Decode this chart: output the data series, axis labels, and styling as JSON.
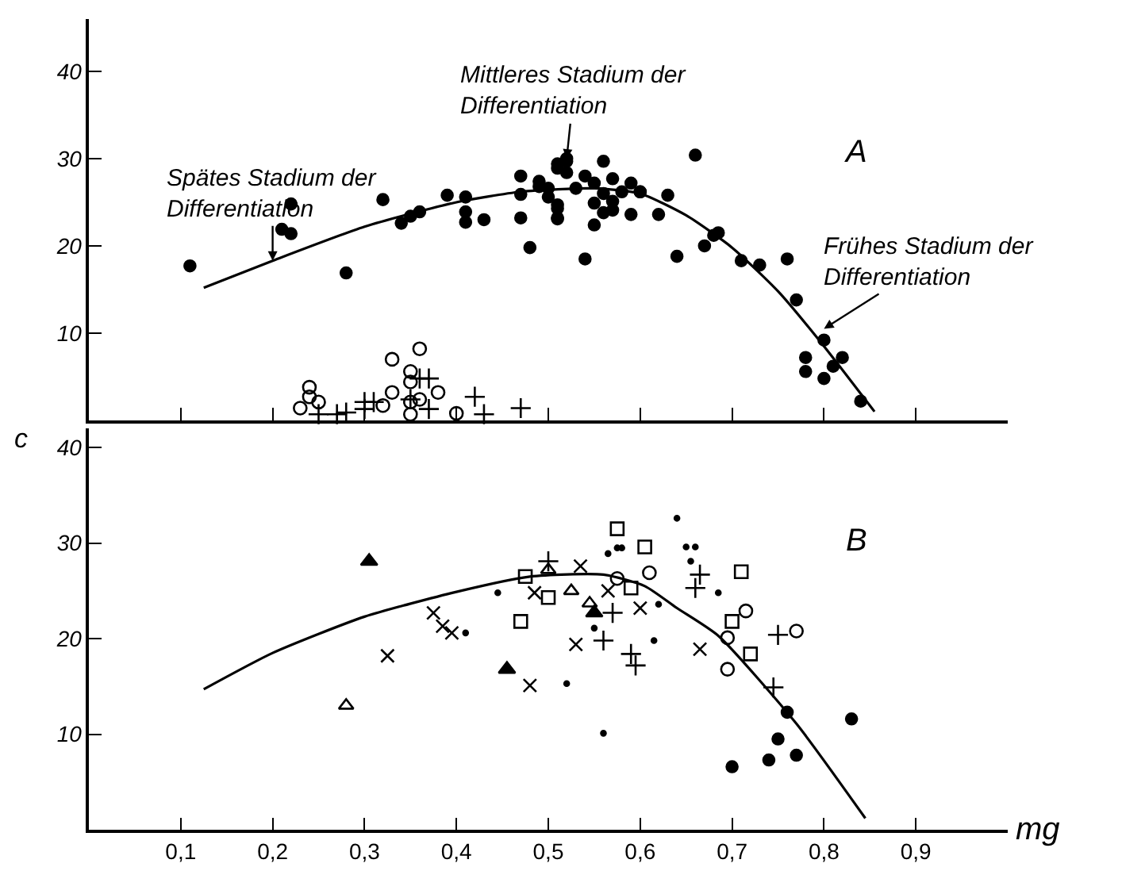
{
  "chart_data": [
    {
      "type": "scatter",
      "ylabel": "c",
      "tick_labels": "y",
      "xlim": [
        0,
        1.0
      ],
      "ylim": [
        0,
        46
      ],
      "xticks": [
        {
          "value": 0.1,
          "label": null
        },
        {
          "value": 0.2,
          "label": null
        },
        {
          "value": 0.3,
          "label": null
        },
        {
          "value": 0.4,
          "label": null
        },
        {
          "value": 0.5,
          "label": null
        },
        {
          "value": 0.6,
          "label": null
        },
        {
          "value": 0.7,
          "label": null
        },
        {
          "value": 0.8,
          "label": null
        },
        {
          "value": 0.9,
          "label": null
        }
      ],
      "yticks": [
        10,
        20,
        30,
        40
      ],
      "annotations": [
        {
          "text": "Spätes Stadium der\nDifferentiation",
          "x": 0.2,
          "y": 18.3
        },
        {
          "text": "Mittleres Stadium der\nDifferentiation",
          "x": 0.52,
          "y": 30.0
        },
        {
          "text": "Frühes Stadium der\nDifferentiation",
          "x": 0.8,
          "y": 10.5
        },
        "A"
      ],
      "series": [
        {
          "type": "scatter",
          "marker": "circle",
          "color": "#000000",
          "x": [
            0.11,
            0.21,
            0.22,
            0.22,
            0.28,
            0.32,
            0.34,
            0.35,
            0.36,
            0.39,
            0.41,
            0.41,
            0.41,
            0.43,
            0.47,
            0.47,
            0.47,
            0.48,
            0.49,
            0.49,
            0.5,
            0.5,
            0.51,
            0.51,
            0.51,
            0.51,
            0.51,
            0.51,
            0.52,
            0.52,
            0.52,
            0.53,
            0.54,
            0.54,
            0.55,
            0.55,
            0.55,
            0.56,
            0.56,
            0.56,
            0.57,
            0.57,
            0.57,
            0.58,
            0.59,
            0.59,
            0.6,
            0.6,
            0.62,
            0.63,
            0.64,
            0.66,
            0.67,
            0.68,
            0.685,
            0.71,
            0.73,
            0.76,
            0.77,
            0.78,
            0.78,
            0.8,
            0.8,
            0.81,
            0.82,
            0.84
          ],
          "values": [
            17.7,
            21.9,
            21.4,
            24.8,
            16.9,
            25.3,
            22.6,
            23.4,
            23.9,
            25.8,
            25.6,
            23.9,
            22.7,
            23.0,
            28.0,
            25.9,
            23.2,
            19.8,
            26.8,
            27.4,
            25.6,
            26.6,
            29.4,
            28.9,
            24.3,
            23.1,
            24.7,
            23.2,
            30.0,
            28.4,
            29.7,
            26.6,
            28.0,
            18.5,
            27.2,
            24.9,
            22.4,
            26.0,
            23.8,
            29.7,
            27.7,
            25.1,
            24.1,
            26.2,
            27.2,
            23.6,
            26.2,
            26.2,
            23.6,
            25.8,
            18.8,
            30.4,
            20.0,
            21.2,
            21.5,
            18.3,
            17.8,
            18.5,
            13.8,
            7.2,
            5.6,
            9.2,
            4.8,
            6.2,
            7.2,
            2.2
          ]
        },
        {
          "type": "scatter",
          "marker": "circle-open",
          "color": "#000000",
          "x": [
            0.23,
            0.24,
            0.24,
            0.25,
            0.32,
            0.33,
            0.33,
            0.35,
            0.35,
            0.36,
            0.35,
            0.35,
            0.36,
            0.38,
            0.4
          ],
          "values": [
            1.4,
            3.8,
            2.7,
            2.1,
            1.7,
            7.0,
            3.2,
            5.6,
            4.4,
            8.2,
            2.1,
            0.7,
            2.4,
            3.2,
            0.8
          ]
        },
        {
          "type": "scatter",
          "marker": "cross",
          "color": "#000000",
          "x": [
            0.25,
            0.27,
            0.28,
            0.3,
            0.3,
            0.31,
            0.36,
            0.37,
            0.35,
            0.37,
            0.42,
            0.43,
            0.47
          ],
          "values": [
            0.7,
            0.7,
            0.9,
            2.1,
            1.3,
            2.1,
            4.8,
            4.8,
            2.4,
            1.3,
            2.7,
            0.7,
            1.4
          ]
        },
        {
          "type": "line",
          "line_style": "solid",
          "color": "#000000",
          "x": [
            0.125,
            0.2,
            0.3,
            0.4,
            0.47,
            0.55,
            0.6,
            0.65,
            0.7,
            0.75,
            0.8,
            0.855
          ],
          "values": [
            15.2,
            18.3,
            22.2,
            25.0,
            26.2,
            26.6,
            26.0,
            23.5,
            19.8,
            14.8,
            8.5,
            1.0
          ]
        }
      ]
    },
    {
      "type": "scatter",
      "xlabel": "mg",
      "xlim": [
        0,
        1.0
      ],
      "ylim": [
        0,
        42
      ],
      "xticks": [
        {
          "value": 0.1,
          "label": "0,1"
        },
        {
          "value": 0.2,
          "label": "0,2"
        },
        {
          "value": 0.3,
          "label": "0,3"
        },
        {
          "value": 0.4,
          "label": "0,4"
        },
        {
          "value": 0.5,
          "label": "0,5"
        },
        {
          "value": 0.6,
          "label": "0,6"
        },
        {
          "value": 0.7,
          "label": "0,7"
        },
        {
          "value": 0.8,
          "label": "0,8"
        },
        {
          "value": 0.9,
          "label": "0,9"
        }
      ],
      "yticks": [
        10,
        20,
        30,
        40
      ],
      "annotations": [
        "B"
      ],
      "series": [
        {
          "type": "scatter",
          "marker": "triangle",
          "color": "#000000",
          "x": [
            0.305,
            0.455,
            0.55
          ],
          "values": [
            28.1,
            16.8,
            22.7
          ]
        },
        {
          "type": "scatter",
          "marker": "triangle-open",
          "color": "#000000",
          "x": [
            0.28,
            0.5,
            0.525,
            0.545
          ],
          "values": [
            13.0,
            27.2,
            25.0,
            23.7
          ]
        },
        {
          "type": "scatter",
          "marker": "x",
          "color": "#000000",
          "x": [
            0.325,
            0.375,
            0.385,
            0.395,
            0.48,
            0.485,
            0.535,
            0.53,
            0.6,
            0.665,
            0.565
          ],
          "values": [
            18.2,
            22.7,
            21.3,
            20.6,
            15.1,
            24.8,
            27.6,
            19.4,
            23.2,
            18.9,
            25.0
          ]
        },
        {
          "type": "scatter",
          "marker": "point",
          "color": "#000000",
          "x": [
            0.41,
            0.445,
            0.52,
            0.56,
            0.64,
            0.565,
            0.575,
            0.58,
            0.65,
            0.66,
            0.655,
            0.62,
            0.615,
            0.685,
            0.55
          ],
          "values": [
            20.6,
            24.8,
            15.3,
            10.1,
            32.6,
            28.9,
            29.5,
            29.5,
            29.6,
            29.6,
            28.1,
            23.6,
            19.8,
            24.8,
            21.1
          ]
        },
        {
          "type": "scatter",
          "marker": "square-open",
          "color": "#000000",
          "x": [
            0.475,
            0.47,
            0.5,
            0.575,
            0.605,
            0.59,
            0.71,
            0.7,
            0.72
          ],
          "values": [
            26.5,
            21.8,
            24.3,
            31.5,
            29.6,
            25.3,
            27.0,
            21.8,
            18.4
          ]
        },
        {
          "type": "scatter",
          "marker": "circle-open",
          "color": "#000000",
          "x": [
            0.575,
            0.61,
            0.715,
            0.695,
            0.695,
            0.77
          ],
          "values": [
            26.3,
            26.9,
            22.9,
            20.1,
            16.8,
            20.8
          ]
        },
        {
          "type": "scatter",
          "marker": "cross",
          "color": "#000000",
          "x": [
            0.5,
            0.57,
            0.56,
            0.59,
            0.595,
            0.665,
            0.66,
            0.75,
            0.745
          ],
          "values": [
            28.1,
            22.7,
            19.8,
            18.4,
            17.2,
            26.7,
            25.3,
            20.4,
            14.9
          ]
        },
        {
          "type": "scatter",
          "marker": "circle",
          "color": "#000000",
          "x": [
            0.76,
            0.75,
            0.74,
            0.77,
            0.7,
            0.83
          ],
          "values": [
            12.3,
            9.5,
            7.3,
            7.8,
            6.6,
            11.6
          ]
        },
        {
          "type": "line",
          "line_style": "solid",
          "color": "#000000",
          "x": [
            0.125,
            0.2,
            0.3,
            0.4,
            0.48,
            0.56,
            0.605,
            0.64,
            0.685,
            0.77,
            0.845
          ],
          "values": [
            14.7,
            18.5,
            22.3,
            24.9,
            26.5,
            26.7,
            25.5,
            23.2,
            20.3,
            11.1,
            1.2
          ]
        }
      ]
    }
  ]
}
